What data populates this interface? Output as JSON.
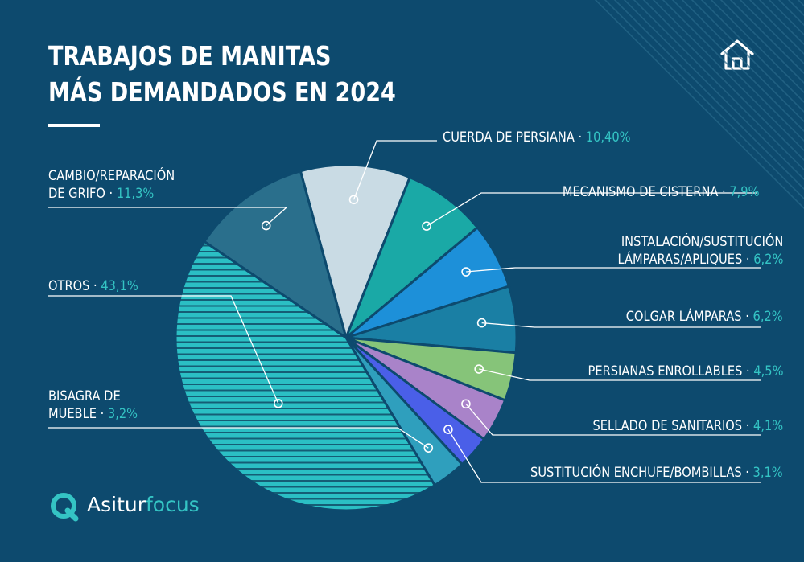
{
  "header": {
    "title_line1": "TRABAJOS DE MANITAS",
    "title_line2": "MÁS DEMANDADOS EN 2024"
  },
  "icons": {
    "home": "home-icon",
    "logo": "asitur-logo-icon"
  },
  "brand": {
    "name_bold": "Asitur",
    "name_light": "focus"
  },
  "colors": {
    "background": "#0d4a6e",
    "accent": "#34c4c4",
    "line": "#ffffff"
  },
  "chart_data": {
    "type": "pie",
    "title": "TRABAJOS DE MANITAS MÁS DEMANDADOS EN 2024",
    "unit": "%",
    "slices": [
      {
        "label": "CUERDA DE PERSIANA",
        "display": "10,40%",
        "value": 10.4,
        "color": "#c9dbe4"
      },
      {
        "label": "MECANISMO DE CISTERNA",
        "display": "7,9%",
        "value": 7.9,
        "color": "#1aa9a6"
      },
      {
        "label": "INSTALACIÓN/SUSTITUCIÓN LÁMPARAS/APLIQUES",
        "label_lines": [
          "INSTALACIÓN/SUSTITUCIÓN",
          "LÁMPARAS/APLIQUES"
        ],
        "display": "6,2%",
        "value": 6.2,
        "color": "#1d90d9"
      },
      {
        "label": "COLGAR LÁMPARAS",
        "display": "6,2%",
        "value": 6.2,
        "color": "#1a7fa4"
      },
      {
        "label": "PERSIANAS ENROLLABLES",
        "display": "4,5%",
        "value": 4.5,
        "color": "#86c479"
      },
      {
        "label": "SELLADO DE SANITARIOS",
        "display": "4,1%",
        "value": 4.1,
        "color": "#a983c9"
      },
      {
        "label": "SUSTITUCIÓN ENCHUFE/BOMBILLAS",
        "display": "3,1%",
        "value": 3.1,
        "color": "#4a5fe8"
      },
      {
        "label": "BISAGRA DE MUEBLE",
        "label_lines": [
          "BISAGRA DE",
          "MUEBLE"
        ],
        "display": "3,2%",
        "value": 3.2,
        "color": "#2f9fbd"
      },
      {
        "label": "OTROS",
        "display": "43,1%",
        "value": 43.1,
        "color": "#2bbfc4",
        "hatched": true
      },
      {
        "label": "CAMBIO/REPARACIÓN DE GRIFO",
        "label_lines": [
          "CAMBIO/REPARACIÓN",
          "DE GRIFO"
        ],
        "display": "11,3%",
        "value": 11.3,
        "color": "#2a6f8c"
      }
    ]
  }
}
